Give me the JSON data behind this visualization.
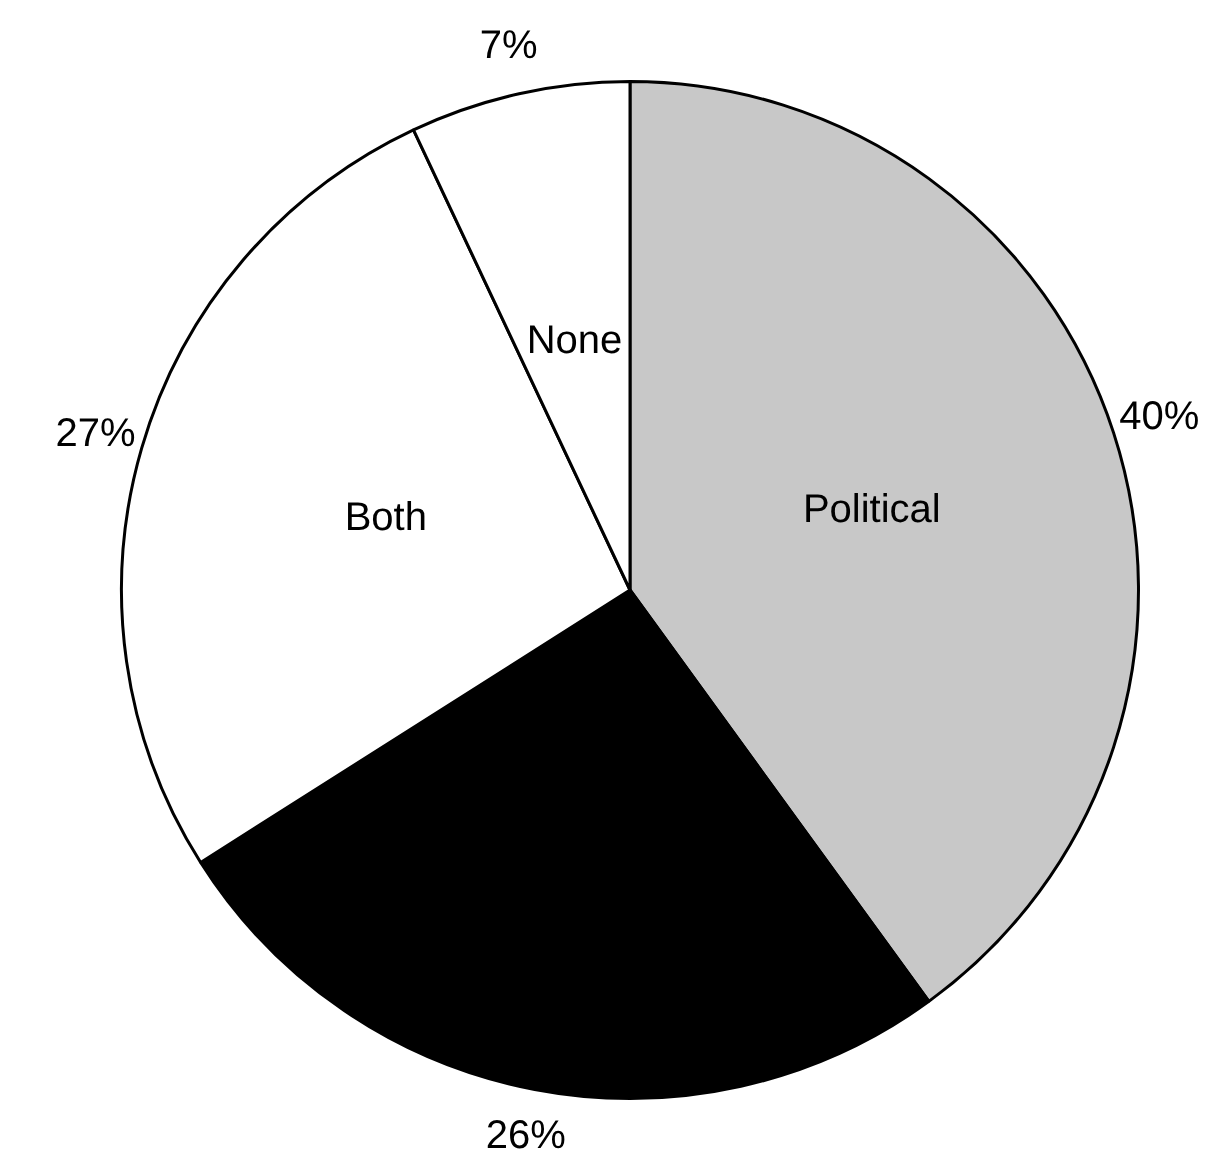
{
  "chart_data": {
    "type": "pie",
    "categories": [
      "Political",
      null,
      "Both",
      "None"
    ],
    "values": [
      40,
      26,
      27,
      7
    ],
    "colors": [
      "#c8c8c8",
      "#000000",
      "#ffffff",
      "#ffffff"
    ],
    "value_labels": [
      "40%",
      "26%",
      "27%",
      "7%"
    ],
    "legend": false
  }
}
